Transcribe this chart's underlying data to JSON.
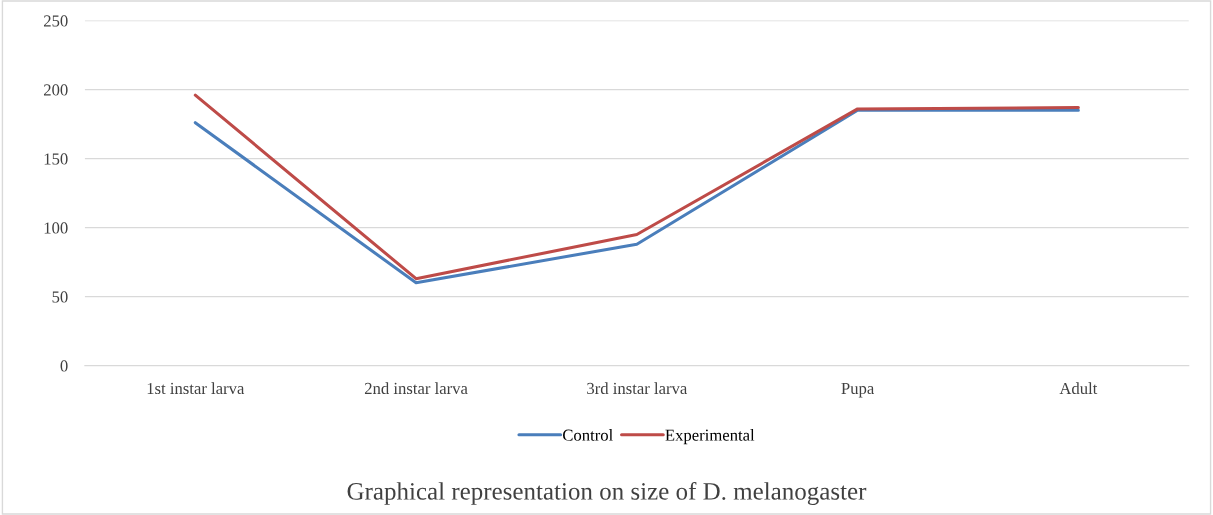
{
  "chart_data": {
    "type": "line",
    "title": "Graphical representation on size of D. melanogaster",
    "categories": [
      "1st instar larva",
      "2nd instar larva",
      "3rd instar larva",
      "Pupa",
      "Adult"
    ],
    "series": [
      {
        "name": "Control",
        "color": "#4a7ebb",
        "values": [
          176,
          60,
          88,
          185,
          185
        ]
      },
      {
        "name": "Experimental",
        "color": "#be4b48",
        "values": [
          196,
          63,
          95,
          186,
          187
        ]
      }
    ],
    "ylim": [
      0,
      250
    ],
    "yticks": [
      0,
      50,
      100,
      150,
      200,
      250
    ],
    "grid": "y",
    "legend": "bottom",
    "marker": "none",
    "line_style": "solid"
  }
}
